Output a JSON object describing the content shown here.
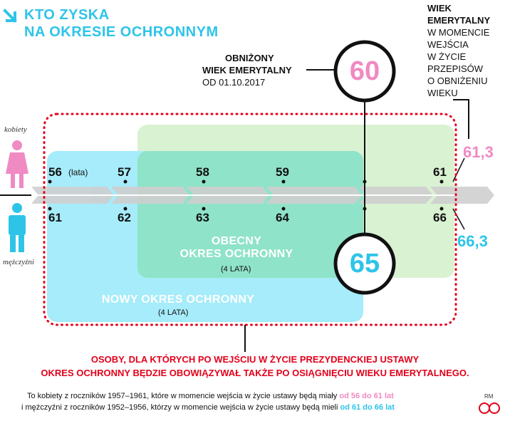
{
  "header": {
    "title_line1": "KTO ZYSKA",
    "title_line2": "NA OKRESIE OCHRONNYM",
    "arrow_icon": "arrow-down-right-icon"
  },
  "colors": {
    "pink": "#f08ac3",
    "cyan": "#2ec4e8",
    "red": "#e2001a",
    "light_green": "#d9f2d2",
    "light_cyan": "#a6ecfa",
    "mixed": "#8fe3c8",
    "arrow_gray": "#cccccc"
  },
  "lowered_age": {
    "line1": "OBNIŻONY",
    "line2": "WIEK EMERYTALNY",
    "line3": "OD 01.10.2017",
    "female": "60",
    "male": "65"
  },
  "current_age": {
    "line1": "WIEK",
    "line2": "EMERYTALNY",
    "line3": "W MOMENCIE",
    "line4": "WEJŚCIA",
    "line5": "W ŻYCIE",
    "line6": "PRZEPISÓW",
    "line7": "O OBNIŻENIU",
    "line8": "WIEKU",
    "female": "61,3",
    "male": "66,3"
  },
  "genders": {
    "women": "kobiety",
    "men": "mężczyźni"
  },
  "timeline": {
    "unit": "(lata)",
    "women_ages": [
      "56",
      "57",
      "58",
      "59",
      "61"
    ],
    "men_ages": [
      "61",
      "62",
      "63",
      "64",
      "66"
    ]
  },
  "zones": {
    "current_title_1": "OBECNY",
    "current_title_2": "OKRES OCHRONNY",
    "current_sub": "(4 LATA)",
    "new_title": "NOWY OKRES OCHRONNY",
    "new_sub": "(4 LATA)"
  },
  "red_note": {
    "line1": "OSOBY, DLA KTÓRYCH PO WEJŚCIU W ŻYCIE PREZYDENCKIEJ USTAWY",
    "line2": "OKRES OCHRONNY BĘDZIE OBOWIĄZYWAŁ TAKŻE PO OSIĄGNIĘCIU WIEKU EMERYTALNEGO."
  },
  "footer": {
    "line1_start": "To kobiety z roczników 1957–1961, które w momencie wejścia w życie ustawy będą miały ",
    "line1_highlight": "od 56 do 61 lat",
    "line2_start": "i  mężczyźni z roczników 1952–1956, którzy w momencie wejścia w życie ustawy będą mieli ",
    "line2_highlight": "od 61 do 66 lat",
    "initials": "RM",
    "logo_text": "©P"
  }
}
